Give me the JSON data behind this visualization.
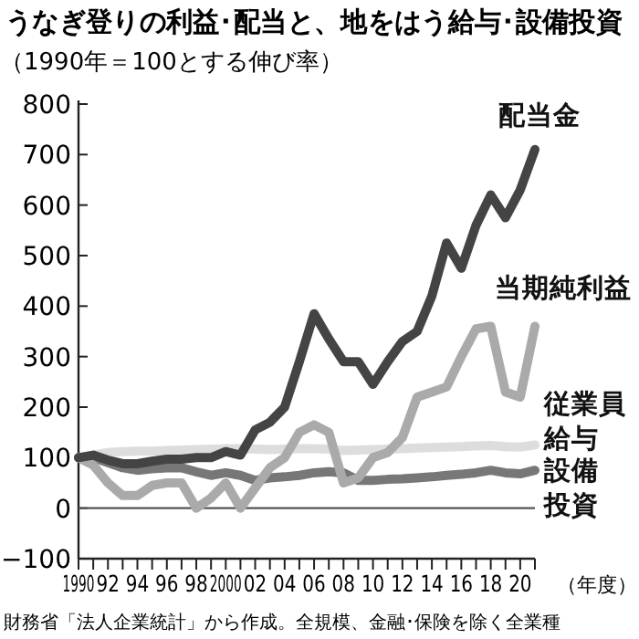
{
  "chart_data": {
    "type": "line",
    "title": "うなぎ登りの利益･配当と、地をはう給与･設備投資",
    "subtitle": "（1990年＝100とする伸び率）",
    "xlabel": "（年度）",
    "annotations": [
      "財務省「法人企業統計」から作成。全規模、金融･保険を除く全業種"
    ],
    "x": [
      1990,
      1991,
      1992,
      1993,
      1994,
      1995,
      1996,
      1997,
      1998,
      1999,
      2000,
      2001,
      2002,
      2003,
      2004,
      2005,
      2006,
      2007,
      2008,
      2009,
      2010,
      2011,
      2012,
      2013,
      2014,
      2015,
      2016,
      2017,
      2018,
      2019,
      2020,
      2021
    ],
    "xlim": [
      1990,
      2021
    ],
    "xticks": [
      {
        "value": 1990,
        "label": "1990"
      },
      {
        "value": 1991,
        "label": null
      },
      {
        "value": 1992,
        "label": "92"
      },
      {
        "value": 1993,
        "label": null
      },
      {
        "value": 1994,
        "label": "94"
      },
      {
        "value": 1995,
        "label": null
      },
      {
        "value": 1996,
        "label": "96"
      },
      {
        "value": 1997,
        "label": null
      },
      {
        "value": 1998,
        "label": "98"
      },
      {
        "value": 1999,
        "label": null
      },
      {
        "value": 2000,
        "label": "2000"
      },
      {
        "value": 2001,
        "label": null
      },
      {
        "value": 2002,
        "label": "02"
      },
      {
        "value": 2003,
        "label": null
      },
      {
        "value": 2004,
        "label": "04"
      },
      {
        "value": 2005,
        "label": null
      },
      {
        "value": 2006,
        "label": "06"
      },
      {
        "value": 2007,
        "label": null
      },
      {
        "value": 2008,
        "label": "08"
      },
      {
        "value": 2009,
        "label": null
      },
      {
        "value": 2010,
        "label": "10"
      },
      {
        "value": 2011,
        "label": null
      },
      {
        "value": 2012,
        "label": "12"
      },
      {
        "value": 2013,
        "label": null
      },
      {
        "value": 2014,
        "label": "14"
      },
      {
        "value": 2015,
        "label": null
      },
      {
        "value": 2016,
        "label": "16"
      },
      {
        "value": 2017,
        "label": null
      },
      {
        "value": 2018,
        "label": "18"
      },
      {
        "value": 2019,
        "label": null
      },
      {
        "value": 2020,
        "label": "20"
      },
      {
        "value": 2021,
        "label": null
      }
    ],
    "ylim": [
      -100,
      800
    ],
    "yticks": [
      -100,
      0,
      100,
      200,
      300,
      400,
      500,
      600,
      700,
      800
    ],
    "ref_lines": [
      {
        "axis": "y",
        "value": 0,
        "color": "#555555"
      }
    ],
    "grid": false,
    "legend": false,
    "series": [
      {
        "name": "配当金",
        "color": "#444444",
        "values": [
          100,
          105,
          95,
          88,
          88,
          93,
          97,
          97,
          100,
          100,
          112,
          105,
          155,
          170,
          200,
          290,
          385,
          335,
          290,
          290,
          245,
          290,
          330,
          350,
          420,
          525,
          475,
          560,
          620,
          575,
          630,
          710
        ]
      },
      {
        "name": "当期純利益",
        "color": "#aaaaaa",
        "values": [
          100,
          85,
          50,
          25,
          25,
          45,
          50,
          50,
          0,
          20,
          50,
          0,
          40,
          80,
          100,
          150,
          165,
          150,
          50,
          60,
          100,
          110,
          140,
          220,
          230,
          240,
          300,
          355,
          360,
          230,
          220,
          360
        ]
      },
      {
        "name": "従業員給与",
        "color": "#dddddd",
        "values": [
          100,
          105,
          110,
          112,
          113,
          113,
          114,
          115,
          116,
          117,
          118,
          118,
          117,
          116,
          117,
          118,
          118,
          117,
          114,
          115,
          116,
          117,
          118,
          119,
          120,
          121,
          122,
          123,
          124,
          122,
          121,
          125
        ]
      },
      {
        "name": "設備投資",
        "color": "#777777",
        "values": [
          100,
          100,
          90,
          80,
          75,
          78,
          80,
          80,
          72,
          65,
          70,
          65,
          55,
          60,
          62,
          65,
          70,
          72,
          70,
          55,
          55,
          57,
          58,
          60,
          62,
          65,
          67,
          70,
          75,
          70,
          68,
          75
        ]
      }
    ]
  }
}
